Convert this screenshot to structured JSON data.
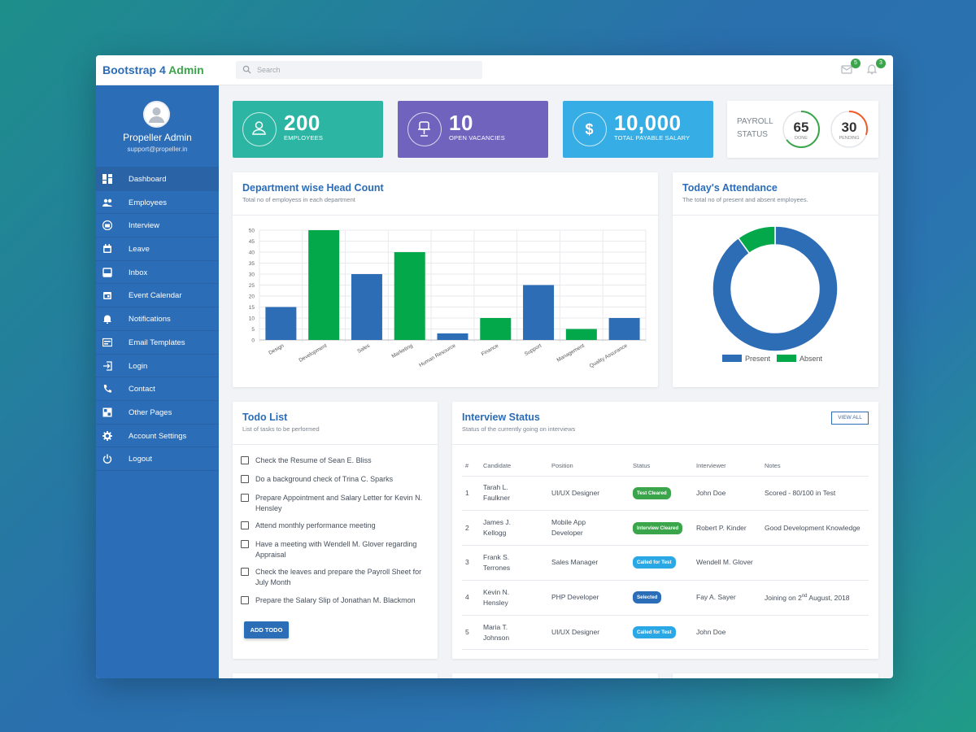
{
  "brand": {
    "part1": "Bootstrap 4",
    "part2": "Admin"
  },
  "search": {
    "placeholder": "Search"
  },
  "topbar": {
    "mail_count": "5",
    "bell_count": "3"
  },
  "profile": {
    "name": "Propeller Admin",
    "email": "support@propeller.in"
  },
  "sidebar": {
    "items": [
      {
        "label": "Dashboard",
        "icon": "dashboard-icon"
      },
      {
        "label": "Employees",
        "icon": "people-icon"
      },
      {
        "label": "Interview",
        "icon": "briefcase-icon"
      },
      {
        "label": "Leave",
        "icon": "calendar-icon"
      },
      {
        "label": "Inbox",
        "icon": "inbox-icon"
      },
      {
        "label": "Event Calendar",
        "icon": "event-icon"
      },
      {
        "label": "Notifications",
        "icon": "bell-icon"
      },
      {
        "label": "Email Templates",
        "icon": "template-icon"
      },
      {
        "label": "Login",
        "icon": "login-icon"
      },
      {
        "label": "Contact",
        "icon": "phone-icon"
      },
      {
        "label": "Other Pages",
        "icon": "pages-icon"
      },
      {
        "label": "Account Settings",
        "icon": "gear-icon"
      },
      {
        "label": "Logout",
        "icon": "power-icon"
      }
    ]
  },
  "stats": [
    {
      "value": "200",
      "label": "EMPLOYEES",
      "color": "#2db5a3",
      "icon": "person-icon"
    },
    {
      "value": "10",
      "label": "OPEN VACANCIES",
      "color": "#6f63bd",
      "icon": "chair-icon"
    },
    {
      "value": "10,000",
      "label": "TOTAL PAYABLE SALARY",
      "color": "#36ade4",
      "icon": "dollar-icon"
    }
  ],
  "payroll": {
    "title_line1": "PAYROLL",
    "title_line2": "STATUS",
    "done": "65",
    "done_label": "DONE",
    "pending": "30",
    "pending_label": "PENDING",
    "done_color": "#3aa54a",
    "pending_color": "#f05a28"
  },
  "headcount": {
    "title": "Department wise Head Count",
    "subtitle": "Total no of employess in each department"
  },
  "attendance": {
    "title": "Today's Attendance",
    "subtitle": "The total no of present and absent employees.",
    "legend_present": "Present",
    "legend_absent": "Absent"
  },
  "todo": {
    "title": "Todo List",
    "subtitle": "List of tasks to be performed",
    "button": "ADD TODO",
    "items": [
      "Check the Resume of Sean E. Bliss",
      "Do a background check of Trina C. Sparks",
      "Prepare Appointment and Salary Letter for Kevin N. Hensley",
      "Attend monthly performance meeting",
      "Have a meeting with Wendell M. Glover regarding Appraisal",
      "Check the leaves and prepare the Payroll Sheet for July Month",
      "Prepare the Salary Slip of Jonathan M. Blackmon"
    ]
  },
  "interview": {
    "title": "Interview Status",
    "subtitle": "Status of the currently going on interviews",
    "button": "VIEW ALL",
    "columns": [
      "#",
      "Candidate",
      "Position",
      "Status",
      "Interviewer",
      "Notes"
    ],
    "rows": [
      {
        "n": "1",
        "candidate": "Tarah L. Faulkner",
        "position": "UI/UX Designer",
        "status": "Test Cleared",
        "status_color": "#3aa54a",
        "interviewer": "John Doe",
        "notes": "Scored - 80/100 in Test"
      },
      {
        "n": "2",
        "candidate": "James J. Kellogg",
        "position": "Mobile App Developer",
        "status": "Interview Cleared",
        "status_color": "#3aa54a",
        "interviewer": "Robert P. Kinder",
        "notes": "Good Development Knowledge"
      },
      {
        "n": "3",
        "candidate": "Frank S. Terrones",
        "position": "Sales Manager",
        "status": "Called for Test",
        "status_color": "#2aa8e6",
        "interviewer": "Wendell M. Glover",
        "notes": ""
      },
      {
        "n": "4",
        "candidate": "Kevin N. Hensley",
        "position": "PHP Developer",
        "status": "Selected",
        "status_color": "#2c6db8",
        "interviewer": "Fay A. Sayer",
        "notes_pre": "Joining on 2",
        "notes_sup": "nd",
        "notes_post": " August, 2018"
      },
      {
        "n": "5",
        "candidate": "Maria T. Johnson",
        "position": "UI/UX Designer",
        "status": "Called for Test",
        "status_color": "#2aa8e6",
        "interviewer": "John Doe",
        "notes": ""
      }
    ]
  },
  "chart_data": [
    {
      "type": "bar",
      "title": "Department wise Head Count",
      "categories": [
        "Design",
        "Development",
        "Sales",
        "Marketing",
        "Human Resource",
        "Finance",
        "Support",
        "Management",
        "Quality Assurance"
      ],
      "values": [
        15,
        50,
        30,
        40,
        3,
        10,
        25,
        5,
        10
      ],
      "colors": [
        "#2d6db6",
        "#03a84b",
        "#2d6db6",
        "#03a84b",
        "#2d6db6",
        "#03a84b",
        "#2d6db6",
        "#03a84b",
        "#2d6db6"
      ],
      "ylim": [
        0,
        50
      ],
      "yticks": [
        0,
        5,
        10,
        15,
        20,
        25,
        30,
        35,
        40,
        45,
        50
      ],
      "grid": true
    },
    {
      "type": "pie",
      "title": "Today's Attendance",
      "labels": [
        "Present",
        "Absent"
      ],
      "values": [
        90,
        10
      ],
      "colors": [
        "#2d6db6",
        "#03a84b"
      ],
      "legend": "bottom"
    }
  ]
}
